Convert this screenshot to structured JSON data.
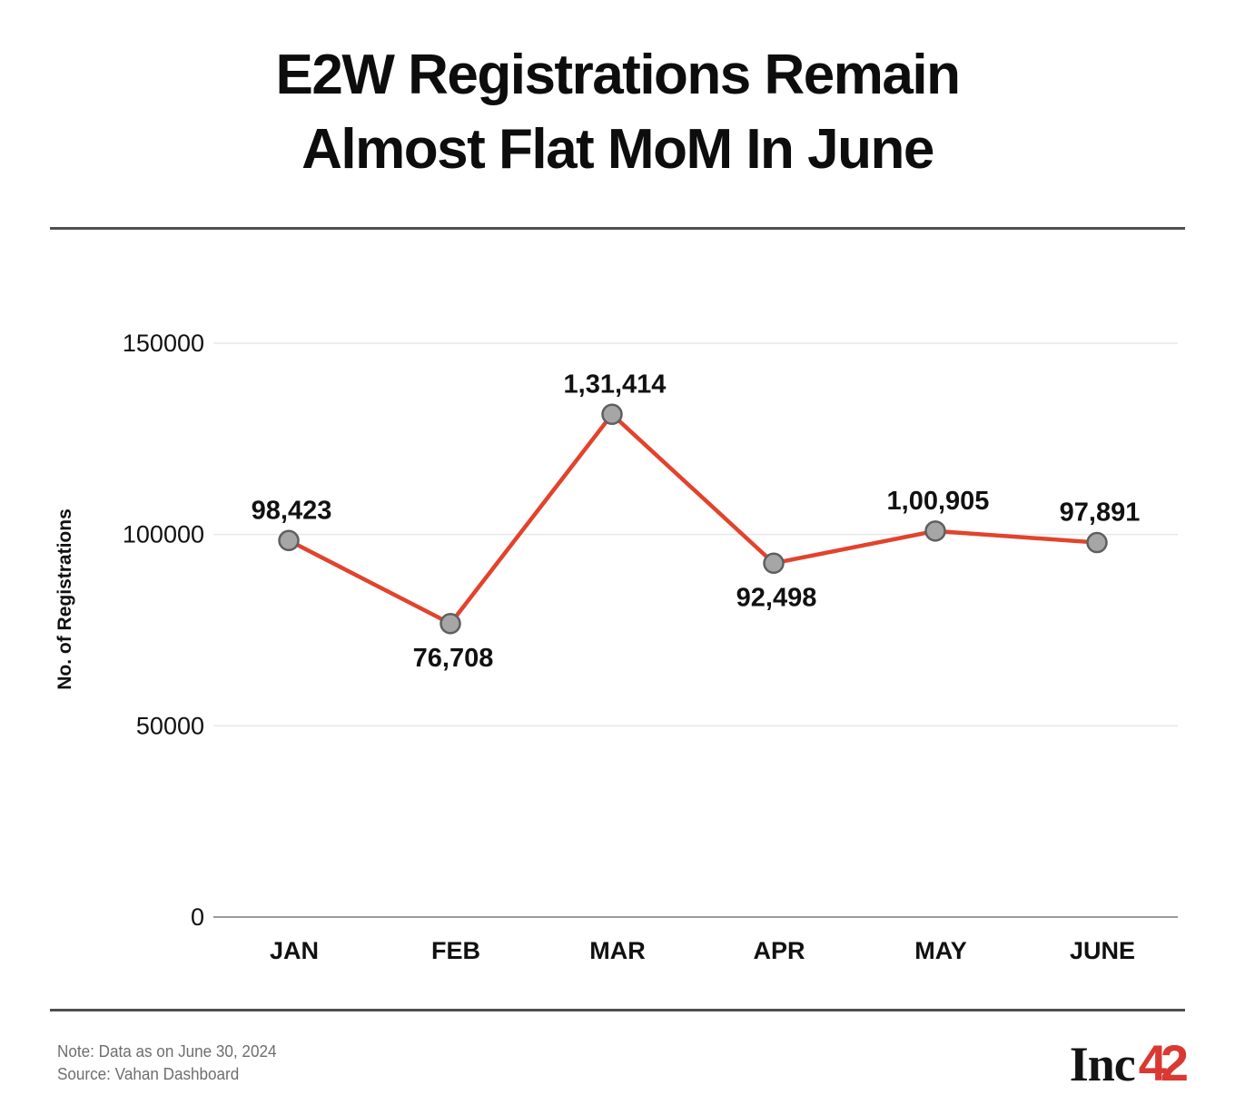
{
  "title": {
    "line1": "E2W Registrations Remain",
    "line2": "Almost Flat MoM In June"
  },
  "chart_data": {
    "type": "line",
    "categories": [
      "JAN",
      "FEB",
      "MAR",
      "APR",
      "MAY",
      "JUNE"
    ],
    "values": [
      98423,
      76708,
      131414,
      92498,
      100905,
      97891
    ],
    "value_labels": [
      "98,423",
      "76,708",
      "1,31,414",
      "92,498",
      "1,00,905",
      "97,891"
    ],
    "label_positions": [
      "above",
      "below",
      "above",
      "below",
      "above",
      "above"
    ],
    "title": "E2W Registrations Remain Almost Flat MoM In June",
    "xlabel": "",
    "ylabel": "No. of Registrations",
    "yticks": [
      0,
      50000,
      100000,
      150000
    ],
    "ytick_labels": [
      "0",
      "50000",
      "100000",
      "150000"
    ],
    "ylim": [
      0,
      150000
    ],
    "grid": true,
    "legend": "none",
    "line_color": "#e2432c",
    "marker_fill": "#a6a6a6",
    "marker_stroke": "#5f5f5f",
    "gridline_color": "#e7e7e7",
    "axis_line_color": "#9a9a9a",
    "tick_label_color": "#111111",
    "data_label_color": "#111111"
  },
  "footer": {
    "note": "Note: Data as on June 30, 2024",
    "source": "Source: Vahan Dashboard",
    "logo_part1": "Inc",
    "logo_part2": "42",
    "logo_accent_color": "#da3832"
  }
}
